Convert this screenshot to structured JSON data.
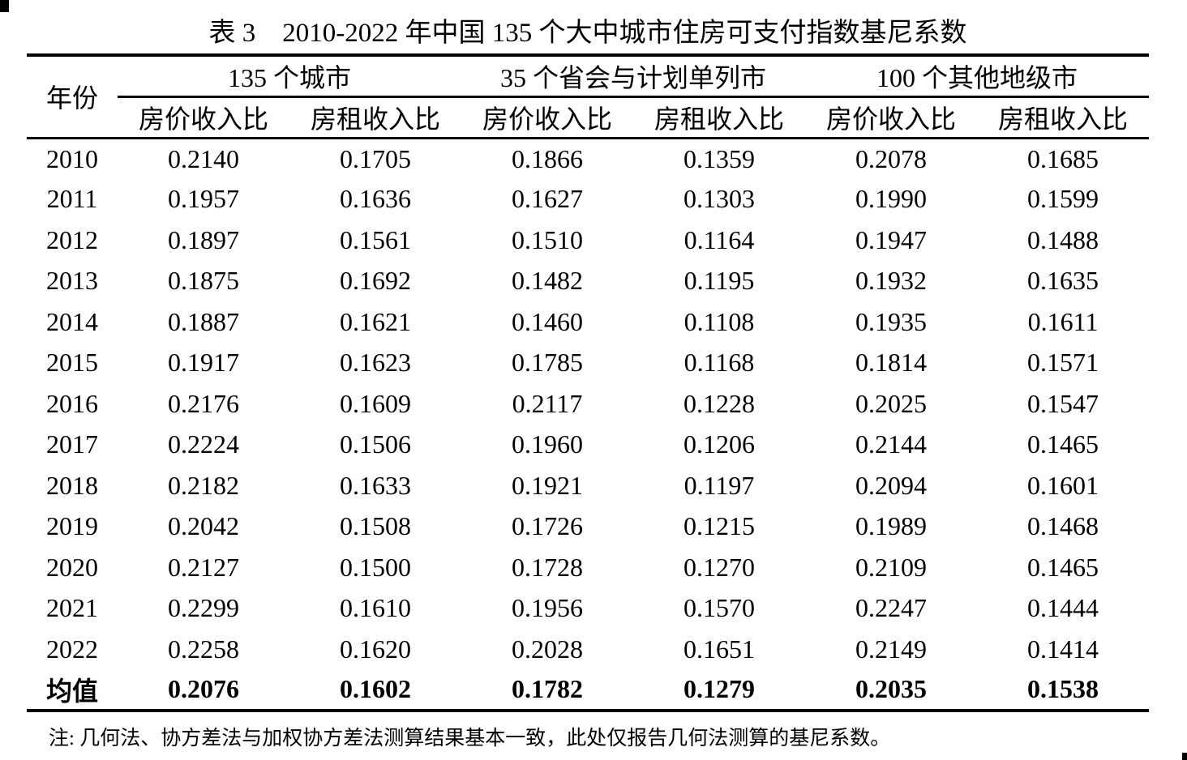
{
  "table": {
    "title": "表 3　2010-2022 年中国 135 个大中城市住房可支付指数基尼系数",
    "year_header": "年份",
    "groups": [
      {
        "label": "135 个城市"
      },
      {
        "label": "35 个省会与计划单列市"
      },
      {
        "label": "100 个其他地级市"
      }
    ],
    "sub_headers": [
      "房价收入比",
      "房租收入比",
      "房价收入比",
      "房租收入比",
      "房价收入比",
      "房租收入比"
    ],
    "rows": [
      {
        "year": "2010",
        "values": [
          "0.2140",
          "0.1705",
          "0.1866",
          "0.1359",
          "0.2078",
          "0.1685"
        ]
      },
      {
        "year": "2011",
        "values": [
          "0.1957",
          "0.1636",
          "0.1627",
          "0.1303",
          "0.1990",
          "0.1599"
        ]
      },
      {
        "year": "2012",
        "values": [
          "0.1897",
          "0.1561",
          "0.1510",
          "0.1164",
          "0.1947",
          "0.1488"
        ]
      },
      {
        "year": "2013",
        "values": [
          "0.1875",
          "0.1692",
          "0.1482",
          "0.1195",
          "0.1932",
          "0.1635"
        ]
      },
      {
        "year": "2014",
        "values": [
          "0.1887",
          "0.1621",
          "0.1460",
          "0.1108",
          "0.1935",
          "0.1611"
        ]
      },
      {
        "year": "2015",
        "values": [
          "0.1917",
          "0.1623",
          "0.1785",
          "0.1168",
          "0.1814",
          "0.1571"
        ]
      },
      {
        "year": "2016",
        "values": [
          "0.2176",
          "0.1609",
          "0.2117",
          "0.1228",
          "0.2025",
          "0.1547"
        ]
      },
      {
        "year": "2017",
        "values": [
          "0.2224",
          "0.1506",
          "0.1960",
          "0.1206",
          "0.2144",
          "0.1465"
        ]
      },
      {
        "year": "2018",
        "values": [
          "0.2182",
          "0.1633",
          "0.1921",
          "0.1197",
          "0.2094",
          "0.1601"
        ]
      },
      {
        "year": "2019",
        "values": [
          "0.2042",
          "0.1508",
          "0.1726",
          "0.1215",
          "0.1989",
          "0.1468"
        ]
      },
      {
        "year": "2020",
        "values": [
          "0.2127",
          "0.1500",
          "0.1728",
          "0.1270",
          "0.2109",
          "0.1465"
        ]
      },
      {
        "year": "2021",
        "values": [
          "0.2299",
          "0.1610",
          "0.1956",
          "0.1570",
          "0.2247",
          "0.1444"
        ]
      },
      {
        "year": "2022",
        "values": [
          "0.2258",
          "0.1620",
          "0.2028",
          "0.1651",
          "0.2149",
          "0.1414"
        ]
      }
    ],
    "mean_row": {
      "label": "均值",
      "values": [
        "0.2076",
        "0.1602",
        "0.1782",
        "0.1279",
        "0.2035",
        "0.1538"
      ]
    },
    "note": "注: 几何法、协方差法与加权协方差法测算结果基本一致，此处仅报告几何法测算的基尼系数。"
  }
}
